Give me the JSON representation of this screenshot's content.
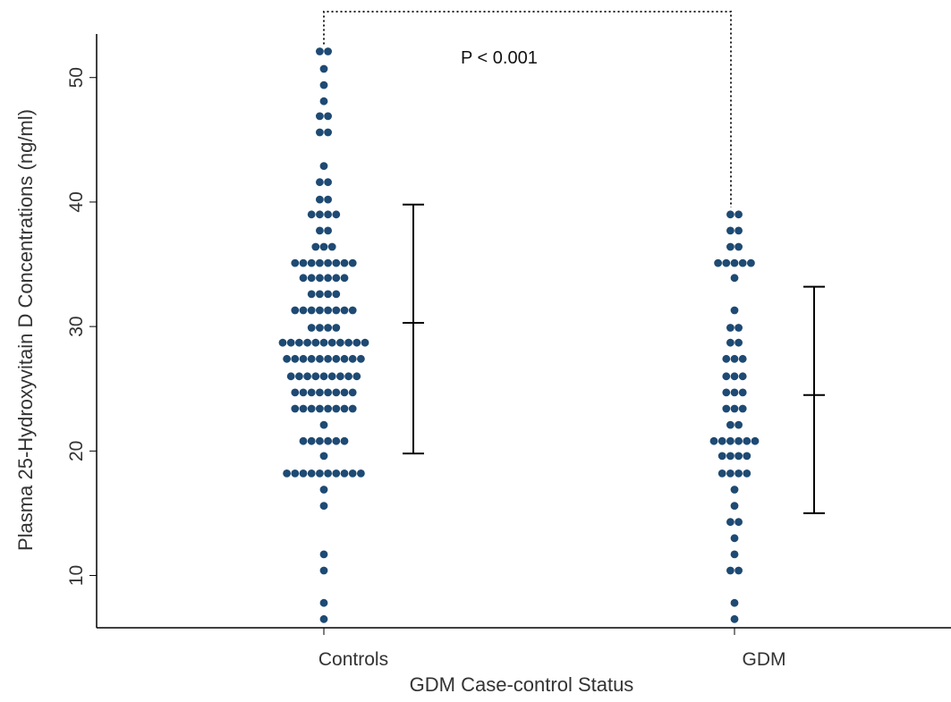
{
  "chart_data": {
    "type": "scatter",
    "title": "",
    "xlabel": "GDM Case-control Status",
    "ylabel": "Plasma 25-Hydroxyvitain D Concentrations (ng/ml)",
    "categories": [
      "Controls",
      "GDM"
    ],
    "ylim": [
      5.8,
      53.5
    ],
    "yticks": [
      10,
      20,
      30,
      40,
      50
    ],
    "grid": false,
    "annotation": "P < 0.001",
    "series": [
      {
        "category": "Controls",
        "points": [
          {
            "y": 52.1,
            "n": 2
          },
          {
            "y": 50.7,
            "n": 1
          },
          {
            "y": 49.4,
            "n": 1
          },
          {
            "y": 48.1,
            "n": 1
          },
          {
            "y": 46.9,
            "n": 2
          },
          {
            "y": 45.6,
            "n": 2
          },
          {
            "y": 42.9,
            "n": 1
          },
          {
            "y": 41.6,
            "n": 2
          },
          {
            "y": 40.2,
            "n": 2
          },
          {
            "y": 39.0,
            "n": 4
          },
          {
            "y": 37.7,
            "n": 2
          },
          {
            "y": 36.4,
            "n": 3
          },
          {
            "y": 35.1,
            "n": 8
          },
          {
            "y": 33.9,
            "n": 6
          },
          {
            "y": 32.6,
            "n": 4
          },
          {
            "y": 31.3,
            "n": 8
          },
          {
            "y": 29.9,
            "n": 4
          },
          {
            "y": 28.7,
            "n": 11
          },
          {
            "y": 27.4,
            "n": 10
          },
          {
            "y": 26.0,
            "n": 9
          },
          {
            "y": 24.7,
            "n": 8
          },
          {
            "y": 23.4,
            "n": 8
          },
          {
            "y": 22.1,
            "n": 1
          },
          {
            "y": 20.8,
            "n": 6
          },
          {
            "y": 19.6,
            "n": 1
          },
          {
            "y": 18.2,
            "n": 10
          },
          {
            "y": 16.9,
            "n": 1
          },
          {
            "y": 15.6,
            "n": 1
          },
          {
            "y": 11.7,
            "n": 1
          },
          {
            "y": 10.4,
            "n": 1
          },
          {
            "y": 7.8,
            "n": 1
          },
          {
            "y": 6.5,
            "n": 1
          }
        ],
        "errorbar": {
          "mean": 30.3,
          "low": 19.8,
          "high": 39.8
        }
      },
      {
        "category": "GDM",
        "points": [
          {
            "y": 39.0,
            "n": 2
          },
          {
            "y": 37.7,
            "n": 2
          },
          {
            "y": 36.4,
            "n": 2
          },
          {
            "y": 35.1,
            "n": 5
          },
          {
            "y": 33.9,
            "n": 1
          },
          {
            "y": 31.3,
            "n": 1
          },
          {
            "y": 29.9,
            "n": 2
          },
          {
            "y": 28.7,
            "n": 2
          },
          {
            "y": 27.4,
            "n": 3
          },
          {
            "y": 26.0,
            "n": 3
          },
          {
            "y": 24.7,
            "n": 3
          },
          {
            "y": 23.4,
            "n": 3
          },
          {
            "y": 22.1,
            "n": 2
          },
          {
            "y": 20.8,
            "n": 6
          },
          {
            "y": 19.6,
            "n": 4
          },
          {
            "y": 18.2,
            "n": 4
          },
          {
            "y": 16.9,
            "n": 1
          },
          {
            "y": 15.6,
            "n": 1
          },
          {
            "y": 14.3,
            "n": 2
          },
          {
            "y": 13.0,
            "n": 1
          },
          {
            "y": 11.7,
            "n": 1
          },
          {
            "y": 10.4,
            "n": 2
          },
          {
            "y": 7.8,
            "n": 1
          },
          {
            "y": 6.5,
            "n": 1
          }
        ],
        "errorbar": {
          "mean": 24.5,
          "low": 15.0,
          "high": 33.2
        }
      }
    ],
    "colors": {
      "dot": "#1e4a73",
      "errorbar": "#000000"
    }
  }
}
